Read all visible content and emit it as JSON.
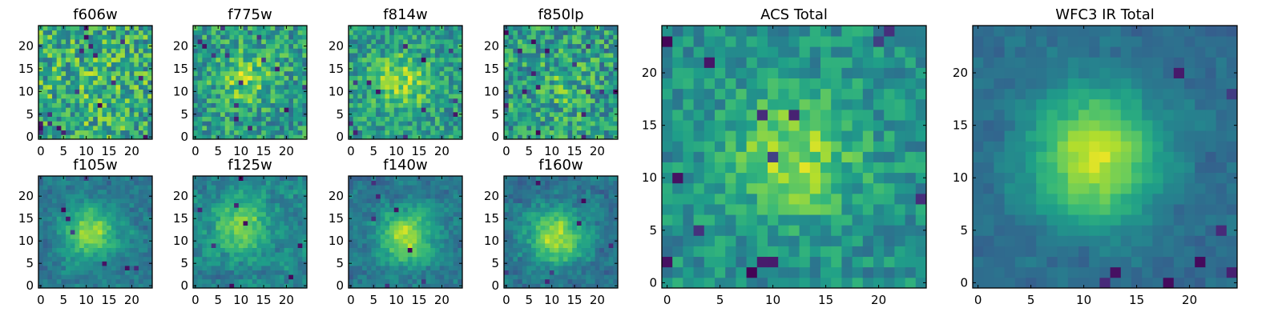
{
  "figure": {
    "description_type": "grid of postage-stamp images",
    "colormap": "viridis"
  },
  "chart_data": [
    {
      "type": "heatmap",
      "title": "f606w",
      "xlabel": "",
      "ylabel": "",
      "xlim": [
        -0.5,
        24.5
      ],
      "ylim": [
        -0.5,
        24.5
      ],
      "xticks": [
        0,
        5,
        10,
        15,
        20
      ],
      "yticks": [
        0,
        5,
        10,
        15,
        20
      ],
      "grid_size": 25,
      "seed": 606,
      "peak": [
        12,
        11
      ],
      "signal": 0.05,
      "noise": 0.55,
      "base": 0.62,
      "smooth": 0,
      "dark_spots": 18
    },
    {
      "type": "heatmap",
      "title": "f775w",
      "xlabel": "",
      "ylabel": "",
      "xlim": [
        -0.5,
        24.5
      ],
      "ylim": [
        -0.5,
        24.5
      ],
      "xticks": [
        0,
        5,
        10,
        15,
        20
      ],
      "yticks": [
        0,
        5,
        10,
        15,
        20
      ],
      "grid_size": 25,
      "seed": 775,
      "peak": [
        11,
        13
      ],
      "signal": 0.25,
      "noise": 0.45,
      "base": 0.55,
      "smooth": 0,
      "dark_spots": 14
    },
    {
      "type": "heatmap",
      "title": "f814w",
      "xlabel": "",
      "ylabel": "",
      "xlim": [
        -0.5,
        24.5
      ],
      "ylim": [
        -0.5,
        24.5
      ],
      "xticks": [
        0,
        5,
        10,
        15,
        20
      ],
      "yticks": [
        0,
        5,
        10,
        15,
        20
      ],
      "grid_size": 25,
      "seed": 814,
      "peak": [
        11,
        12
      ],
      "signal": 0.3,
      "noise": 0.4,
      "base": 0.55,
      "smooth": 0,
      "dark_spots": 12
    },
    {
      "type": "heatmap",
      "title": "f850lp",
      "xlabel": "",
      "ylabel": "",
      "xlim": [
        -0.5,
        24.5
      ],
      "ylim": [
        -0.5,
        24.5
      ],
      "xticks": [
        0,
        5,
        10,
        15,
        20
      ],
      "yticks": [
        0,
        5,
        10,
        15,
        20
      ],
      "grid_size": 25,
      "seed": 850,
      "peak": [
        12,
        11
      ],
      "signal": 0.1,
      "noise": 0.5,
      "base": 0.55,
      "smooth": 0,
      "dark_spots": 16
    },
    {
      "type": "heatmap",
      "title": "f105w",
      "xlabel": "",
      "ylabel": "",
      "xlim": [
        -0.5,
        24.5
      ],
      "ylim": [
        -0.5,
        24.5
      ],
      "xticks": [
        0,
        5,
        10,
        15,
        20
      ],
      "yticks": [
        0,
        5,
        10,
        15,
        20
      ],
      "grid_size": 25,
      "seed": 105,
      "peak": [
        11,
        12
      ],
      "signal": 0.45,
      "noise": 0.3,
      "base": 0.4,
      "smooth": 1,
      "dark_spots": 8
    },
    {
      "type": "heatmap",
      "title": "f125w",
      "xlabel": "",
      "ylabel": "",
      "xlim": [
        -0.5,
        24.5
      ],
      "ylim": [
        -0.5,
        24.5
      ],
      "xticks": [
        0,
        5,
        10,
        15,
        20
      ],
      "yticks": [
        0,
        5,
        10,
        15,
        20
      ],
      "grid_size": 25,
      "seed": 125,
      "peak": [
        10,
        13
      ],
      "signal": 0.4,
      "noise": 0.35,
      "base": 0.45,
      "smooth": 1,
      "dark_spots": 8
    },
    {
      "type": "heatmap",
      "title": "f140w",
      "xlabel": "",
      "ylabel": "",
      "xlim": [
        -0.5,
        24.5
      ],
      "ylim": [
        -0.5,
        24.5
      ],
      "xticks": [
        0,
        5,
        10,
        15,
        20
      ],
      "yticks": [
        0,
        5,
        10,
        15,
        20
      ],
      "grid_size": 25,
      "seed": 140,
      "peak": [
        12,
        11
      ],
      "signal": 0.5,
      "noise": 0.3,
      "base": 0.4,
      "smooth": 1,
      "dark_spots": 7
    },
    {
      "type": "heatmap",
      "title": "f160w",
      "xlabel": "",
      "ylabel": "",
      "xlim": [
        -0.5,
        24.5
      ],
      "ylim": [
        -0.5,
        24.5
      ],
      "xticks": [
        0,
        5,
        10,
        15,
        20
      ],
      "yticks": [
        0,
        5,
        10,
        15,
        20
      ],
      "grid_size": 25,
      "seed": 160,
      "peak": [
        11,
        11
      ],
      "signal": 0.55,
      "noise": 0.3,
      "base": 0.38,
      "smooth": 1,
      "dark_spots": 7
    },
    {
      "type": "heatmap",
      "title": "ACS Total",
      "xlabel": "",
      "ylabel": "",
      "xlim": [
        -0.5,
        24.5
      ],
      "ylim": [
        -0.5,
        24.5
      ],
      "xticks": [
        0,
        5,
        10,
        15,
        20
      ],
      "yticks": [
        0,
        5,
        10,
        15,
        20
      ],
      "grid_size": 25,
      "seed": 1000,
      "peak": [
        12,
        12
      ],
      "signal": 0.35,
      "noise": 0.3,
      "base": 0.5,
      "smooth": 0,
      "dark_spots": 14
    },
    {
      "type": "heatmap",
      "title": "WFC3 IR Total",
      "xlabel": "",
      "ylabel": "",
      "xlim": [
        -0.5,
        24.5
      ],
      "ylim": [
        -0.5,
        24.5
      ],
      "xticks": [
        0,
        5,
        10,
        15,
        20
      ],
      "yticks": [
        0,
        5,
        10,
        15,
        20
      ],
      "grid_size": 25,
      "seed": 2000,
      "peak": [
        11,
        12
      ],
      "signal": 0.6,
      "noise": 0.15,
      "base": 0.35,
      "smooth": 2,
      "dark_spots": 8
    }
  ]
}
